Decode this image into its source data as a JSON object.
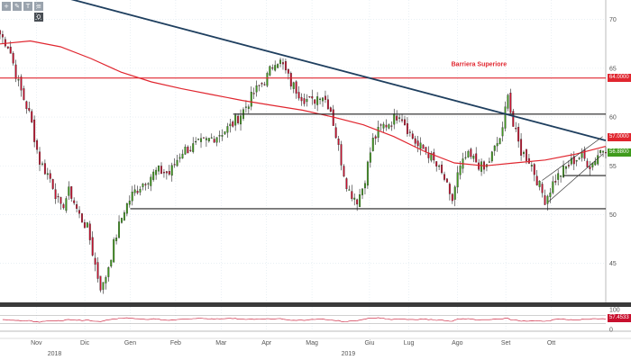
{
  "toolbar": {
    "buttons": [
      {
        "icon": "plus-icon",
        "glyph": "+"
      },
      {
        "icon": "pencil-icon",
        "glyph": "✎"
      },
      {
        "icon": "text-icon",
        "glyph": "T"
      },
      {
        "icon": "settings-icon",
        "glyph": "≡"
      }
    ],
    "zoom_label": "0"
  },
  "chart_data": {
    "type": "candlestick",
    "price_axis": {
      "ticks": [
        "70",
        "65",
        "60",
        "55",
        "50",
        "45"
      ],
      "ylim": [
        41,
        72
      ],
      "side": "right"
    },
    "rsi_axis": {
      "ticks": [
        "100",
        "0"
      ],
      "ylim": [
        0,
        100
      ]
    },
    "x_labels": [
      {
        "label": "Nov",
        "t": 0.06
      },
      {
        "label": "Dic",
        "t": 0.14
      },
      {
        "label": "Gen",
        "t": 0.215
      },
      {
        "label": "Feb",
        "t": 0.29
      },
      {
        "label": "Mar",
        "t": 0.365
      },
      {
        "label": "Apr",
        "t": 0.44
      },
      {
        "label": "Mag",
        "t": 0.515
      },
      {
        "label": "Giu",
        "t": 0.61
      },
      {
        "label": "Lug",
        "t": 0.675
      },
      {
        "label": "Ago",
        "t": 0.755
      },
      {
        "label": "Set",
        "t": 0.835
      },
      {
        "label": "Ott",
        "t": 0.91
      }
    ],
    "year_labels": [
      {
        "label": "2018",
        "t": 0.09
      },
      {
        "label": "2019",
        "t": 0.575
      }
    ],
    "close_points": [
      [
        0.0,
        68.5
      ],
      [
        0.015,
        67.2
      ],
      [
        0.03,
        63.5
      ],
      [
        0.05,
        60.0
      ],
      [
        0.065,
        55.5
      ],
      [
        0.085,
        53.5
      ],
      [
        0.1,
        50.5
      ],
      [
        0.115,
        52.5
      ],
      [
        0.13,
        50.0
      ],
      [
        0.145,
        48.5
      ],
      [
        0.16,
        44.0
      ],
      [
        0.168,
        42.2
      ],
      [
        0.178,
        44.5
      ],
      [
        0.19,
        47.5
      ],
      [
        0.205,
        50.5
      ],
      [
        0.22,
        52.2
      ],
      [
        0.24,
        53.5
      ],
      [
        0.26,
        54.5
      ],
      [
        0.28,
        54.2
      ],
      [
        0.3,
        56.5
      ],
      [
        0.32,
        57.0
      ],
      [
        0.34,
        57.5
      ],
      [
        0.36,
        58.2
      ],
      [
        0.38,
        59.0
      ],
      [
        0.4,
        60.5
      ],
      [
        0.42,
        62.5
      ],
      [
        0.44,
        64.0
      ],
      [
        0.455,
        66.0
      ],
      [
        0.465,
        65.5
      ],
      [
        0.48,
        63.5
      ],
      [
        0.5,
        62.0
      ],
      [
        0.515,
        61.5
      ],
      [
        0.53,
        62.5
      ],
      [
        0.545,
        61.0
      ],
      [
        0.555,
        58.0
      ],
      [
        0.565,
        55.0
      ],
      [
        0.575,
        52.5
      ],
      [
        0.59,
        51.5
      ],
      [
        0.6,
        53.0
      ],
      [
        0.615,
        57.5
      ],
      [
        0.63,
        59.0
      ],
      [
        0.645,
        59.5
      ],
      [
        0.66,
        60.5
      ],
      [
        0.675,
        58.5
      ],
      [
        0.69,
        57.0
      ],
      [
        0.705,
        56.5
      ],
      [
        0.72,
        55.0
      ],
      [
        0.735,
        53.5
      ],
      [
        0.745,
        51.0
      ],
      [
        0.755,
        54.0
      ],
      [
        0.77,
        56.0
      ],
      [
        0.785,
        55.5
      ],
      [
        0.8,
        54.5
      ],
      [
        0.815,
        56.5
      ],
      [
        0.83,
        58.5
      ],
      [
        0.838,
        63.0
      ],
      [
        0.845,
        59.5
      ],
      [
        0.86,
        56.5
      ],
      [
        0.875,
        55.5
      ],
      [
        0.89,
        53.0
      ],
      [
        0.9,
        51.5
      ],
      [
        0.915,
        53.5
      ],
      [
        0.93,
        54.5
      ],
      [
        0.945,
        55.5
      ],
      [
        0.96,
        56.0
      ],
      [
        0.975,
        55.0
      ],
      [
        0.99,
        56.5
      ],
      [
        1.0,
        56.9
      ]
    ],
    "moving_average": [
      [
        0.0,
        67.5
      ],
      [
        0.05,
        67.8
      ],
      [
        0.1,
        67.2
      ],
      [
        0.15,
        66.0
      ],
      [
        0.2,
        64.6
      ],
      [
        0.25,
        63.6
      ],
      [
        0.3,
        62.9
      ],
      [
        0.35,
        62.3
      ],
      [
        0.4,
        61.7
      ],
      [
        0.45,
        61.2
      ],
      [
        0.5,
        60.7
      ],
      [
        0.55,
        60.0
      ],
      [
        0.6,
        59.2
      ],
      [
        0.65,
        58.0
      ],
      [
        0.7,
        56.5
      ],
      [
        0.75,
        55.3
      ],
      [
        0.8,
        55.0
      ],
      [
        0.85,
        55.3
      ],
      [
        0.9,
        55.6
      ],
      [
        0.95,
        56.2
      ],
      [
        1.0,
        57.0
      ]
    ],
    "trendline": [
      [
        0.0,
        74.0
      ],
      [
        1.0,
        57.6
      ]
    ],
    "horizontal_lines": [
      {
        "name": "barriera-superiore",
        "y": 64.0,
        "color": "#e0262f",
        "t0": 0.0,
        "t1": 1.0
      },
      {
        "name": "upper-range",
        "y": 60.3,
        "color": "#222222",
        "t0": 0.385,
        "t1": 1.0
      },
      {
        "name": "mid-range",
        "y": 54.0,
        "color": "#222222",
        "t0": 0.93,
        "t1": 1.0
      },
      {
        "name": "lower-range",
        "y": 50.6,
        "color": "#222222",
        "t0": 0.215,
        "t1": 1.0
      }
    ],
    "channel": [
      {
        "from": [
          0.905,
          51.3
        ],
        "to": [
          0.995,
          56.2
        ]
      },
      {
        "from": [
          0.895,
          53.5
        ],
        "to": [
          0.995,
          58.0
        ]
      }
    ],
    "annotation": {
      "text": "Barriera Superiore",
      "t": 0.745,
      "y": 65.2
    },
    "right_labels": {
      "barrier": "64.0000",
      "last": "56.8800",
      "ma": "57.0000",
      "rsi": "57.4533"
    }
  }
}
